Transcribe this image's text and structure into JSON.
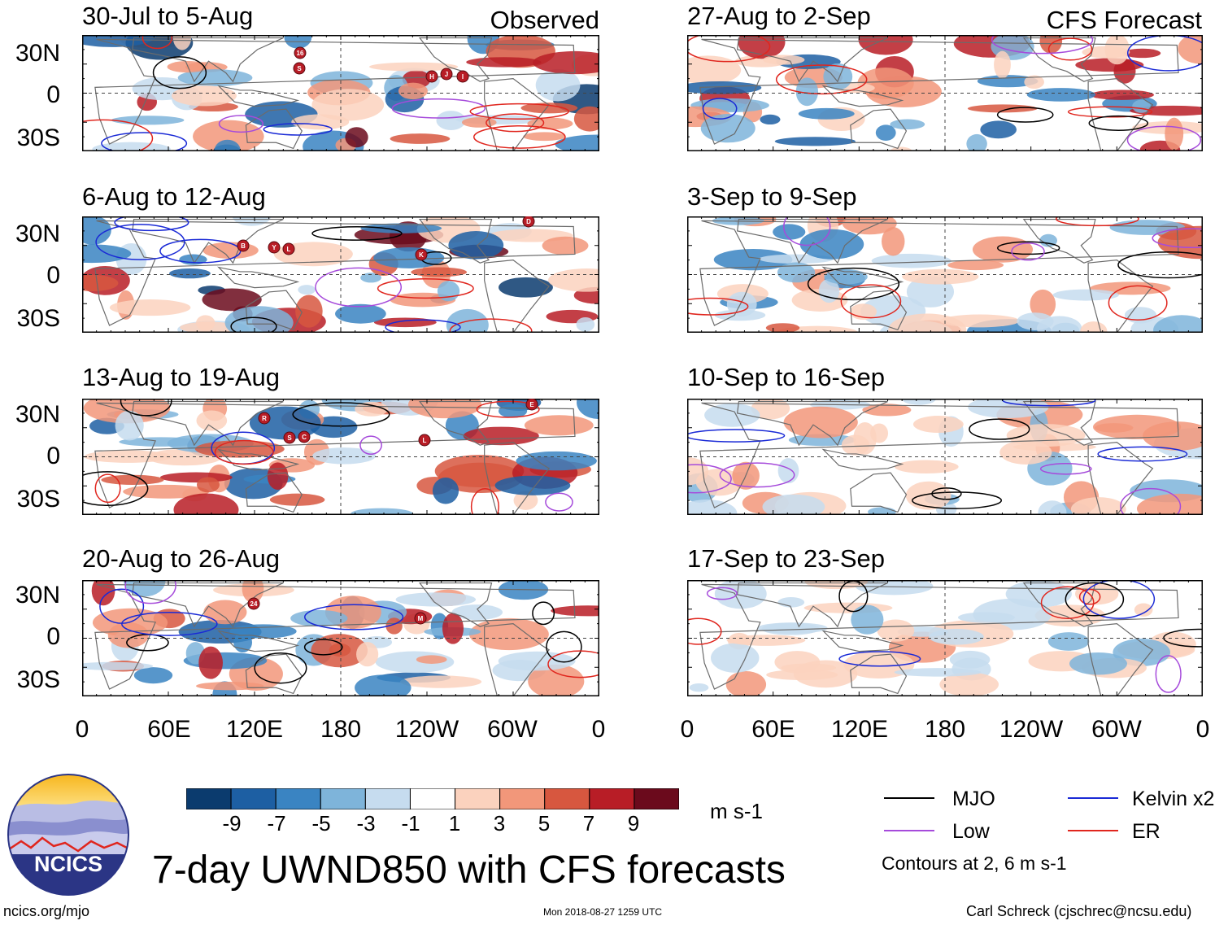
{
  "panels": [
    {
      "id": "obs-1",
      "title": "30-Jul to 5-Aug",
      "tag": "Observed"
    },
    {
      "id": "fc-1",
      "title": "27-Aug to 2-Sep",
      "tag": "CFS Forecast"
    },
    {
      "id": "obs-2",
      "title": "6-Aug to 12-Aug",
      "tag": ""
    },
    {
      "id": "fc-2",
      "title": "3-Sep to 9-Sep",
      "tag": ""
    },
    {
      "id": "obs-3",
      "title": "13-Aug to 19-Aug",
      "tag": ""
    },
    {
      "id": "fc-3",
      "title": "10-Sep to 16-Sep",
      "tag": ""
    },
    {
      "id": "obs-4",
      "title": "20-Aug to 26-Aug",
      "tag": ""
    },
    {
      "id": "fc-4",
      "title": "17-Sep to 23-Sep",
      "tag": ""
    }
  ],
  "lat_labels": [
    "30N",
    "0",
    "30S"
  ],
  "lon_labels": [
    "0",
    "60E",
    "120E",
    "180",
    "120W",
    "60W",
    "0"
  ],
  "storm_markers": {
    "obs-1": [
      "16",
      "S",
      "H",
      "J",
      "I"
    ],
    "obs-2": [
      "B",
      "Y",
      "L",
      "K",
      "D"
    ],
    "obs-3": [
      "R",
      "S",
      "C",
      "L",
      "E"
    ],
    "obs-4": [
      "24",
      "M"
    ]
  },
  "colorbar": {
    "labels": [
      "-9",
      "-7",
      "-5",
      "-3",
      "-1",
      "1",
      "3",
      "5",
      "7",
      "9"
    ],
    "units": "m s-1",
    "colors": [
      "#0b3b6e",
      "#1d5fa3",
      "#3a84c2",
      "#7eb4da",
      "#c6dcef",
      "#ffffff",
      "#fbd2be",
      "#f2977a",
      "#d7573f",
      "#b81d26",
      "#6b0a1c"
    ]
  },
  "legend": {
    "items": [
      {
        "label": "MJO",
        "color": "#000000"
      },
      {
        "label": "Kelvin x2",
        "color": "#1a2ad6"
      },
      {
        "label": "Low",
        "color": "#a64bdb"
      },
      {
        "label": "ER",
        "color": "#e0261e"
      }
    ],
    "contours_note": "Contours at 2, 6 m s-1"
  },
  "logo": {
    "text": "NCICS"
  },
  "main_title": "7-day UWND850 with CFS forecasts",
  "footer": {
    "url": "ncics.org/mjo",
    "timestamp": "Mon 2018-08-27 1259 UTC",
    "credit": "Carl Schreck (cjschrec@ncsu.edu)"
  }
}
